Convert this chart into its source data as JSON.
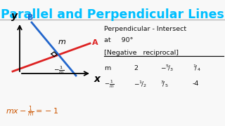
{
  "title": "Parallel and Perpendicular Lines",
  "title_color": "#00bfff",
  "title_bg": "#ffffff",
  "bg_color": "#f8f8f8",
  "line_a_color": "#dd2222",
  "line_b_color": "#2266cc",
  "orange_color": "#cc5500",
  "text_color": "#111111",
  "perp_line1": "Perpendicular - Intersect",
  "perp_line2": "at     90°",
  "neg_recip": "[Negative   reciprocal]",
  "row_m": "m        2       -⁵⁄₃      ¼",
  "row_neg1m": "-¹⁄m     -½      ³⁄₅     -4",
  "formula_color": "#cc5500"
}
